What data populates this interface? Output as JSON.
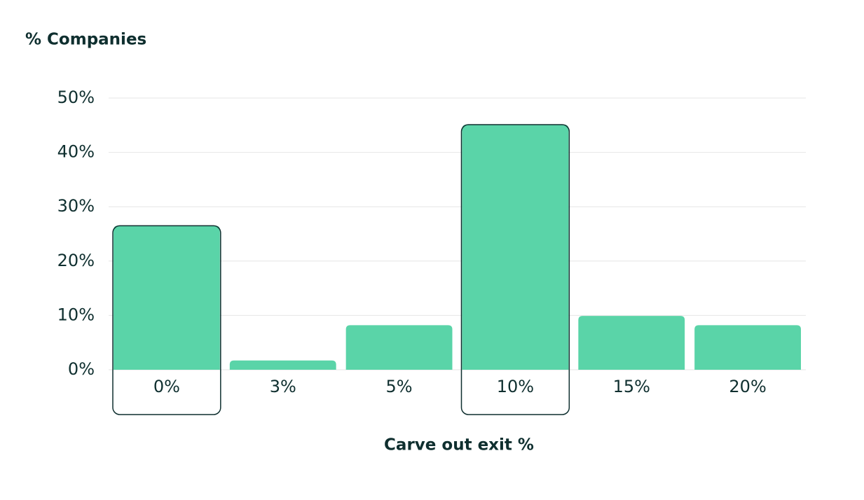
{
  "chart_data": {
    "type": "bar",
    "title": "% Companies",
    "x_label": "Carve out exit %",
    "categories": [
      "0%",
      "3%",
      "5%",
      "10%",
      "15%",
      "20%"
    ],
    "values": [
      26.5,
      1.7,
      8.2,
      45.1,
      9.9,
      8.2
    ],
    "color": "#5ad4a8",
    "highlight": [
      0,
      3
    ],
    "ylim": [
      0,
      50
    ],
    "yticks": [
      {
        "value": 0,
        "label": "0%"
      },
      {
        "value": 10,
        "label": "10%"
      },
      {
        "value": 20,
        "label": "20%"
      },
      {
        "value": 30,
        "label": "30%"
      },
      {
        "value": 40,
        "label": "40%"
      },
      {
        "value": 50,
        "label": "50%"
      }
    ],
    "grid": true
  }
}
